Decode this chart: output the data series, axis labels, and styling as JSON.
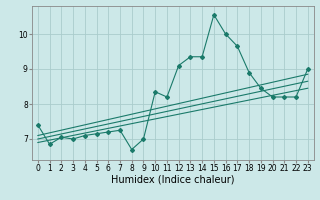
{
  "title": "",
  "xlabel": "Humidex (Indice chaleur)",
  "ylabel": "",
  "bg_color": "#cce8e8",
  "grid_color": "#aacccc",
  "line_color": "#1a7a6a",
  "xlim": [
    -0.5,
    23.5
  ],
  "ylim": [
    6.4,
    10.8
  ],
  "yticks": [
    7,
    8,
    9,
    10
  ],
  "xticks": [
    0,
    1,
    2,
    3,
    4,
    5,
    6,
    7,
    8,
    9,
    10,
    11,
    12,
    13,
    14,
    15,
    16,
    17,
    18,
    19,
    20,
    21,
    22,
    23
  ],
  "main_x": [
    0,
    1,
    2,
    3,
    4,
    5,
    6,
    7,
    8,
    9,
    10,
    11,
    12,
    13,
    14,
    15,
    16,
    17,
    18,
    19,
    20,
    21,
    22,
    23
  ],
  "main_y": [
    7.4,
    6.85,
    7.05,
    7.0,
    7.1,
    7.15,
    7.2,
    7.25,
    6.7,
    7.0,
    8.35,
    8.2,
    9.1,
    9.35,
    9.35,
    10.55,
    10.0,
    9.65,
    8.9,
    8.45,
    8.2,
    8.2,
    8.2,
    9.0
  ],
  "trend1_x": [
    0,
    23
  ],
  "trend1_y": [
    6.9,
    8.45
  ],
  "trend2_x": [
    0,
    23
  ],
  "trend2_y": [
    7.0,
    8.65
  ],
  "trend3_x": [
    0,
    23
  ],
  "trend3_y": [
    7.1,
    8.85
  ],
  "xlabel_fontsize": 7,
  "tick_fontsize": 5.5
}
